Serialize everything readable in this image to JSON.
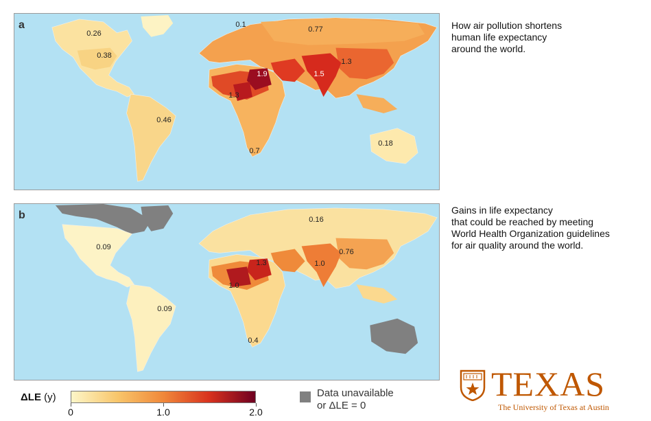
{
  "map_a": {
    "letter": "a",
    "labels": {
      "greenland": "0.1",
      "russia": "0.77",
      "canada": "0.26",
      "usa": "0.38",
      "north_africa": "1.9",
      "india": "1.5",
      "china": "1.3",
      "west_africa": "1.3",
      "south_america": "0.46",
      "southern_africa": "0.7",
      "australia": "0.18"
    },
    "caption": "How air pollution shortens\nhuman life expectancy\naround the world."
  },
  "map_b": {
    "letter": "b",
    "labels": {
      "russia": "0.16",
      "usa": "0.09",
      "north_africa": "1.3",
      "india": "1.0",
      "china": "0.76",
      "west_africa": "1.0",
      "south_america": "0.09",
      "southern_africa": "0.4"
    },
    "caption": "Gains in life expectancy\nthat could be reached by meeting\n World Health Organization guidelines\nfor air quality around the world."
  },
  "legend": {
    "title_main": "ΔLE",
    "title_unit": "(y)",
    "ticks": [
      {
        "label": "0",
        "value": 0
      },
      {
        "label": "1.0",
        "value": 1.0
      },
      {
        "label": "2.0",
        "value": 2.0
      }
    ],
    "range": [
      0,
      2.0
    ],
    "colors": [
      "#fdf6c8",
      "#f8c66b",
      "#f0883a",
      "#d8321e",
      "#6e0020"
    ],
    "unavailable_line1": "Data unavailable",
    "unavailable_line2": "or ΔLE = 0",
    "unavailable_color": "#808080"
  },
  "colors": {
    "ocean": "#b3e1f3",
    "land_low": "#fbe6a2"
  },
  "logo": {
    "word": "TEXAS",
    "subtitle": "The University of Texas at Austin",
    "color": "#bf5700",
    "icon": "ut-shield-icon"
  }
}
